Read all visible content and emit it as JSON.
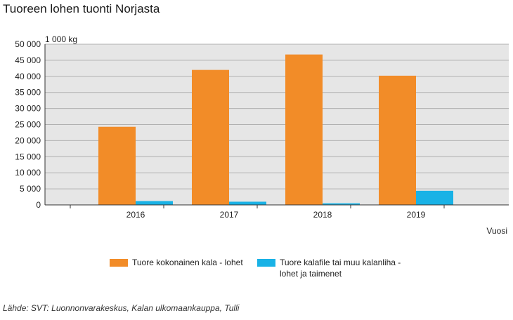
{
  "title": "Tuoreen lohen tuonti Norjasta",
  "source": "Lähde: SVT: Luonnonvarakeskus, Kalan ulkomaankauppa, Tulli",
  "chart_data": {
    "type": "bar",
    "categories": [
      "2016",
      "2017",
      "2018",
      "2019"
    ],
    "series": [
      {
        "name": "Tuore kokonainen kala - lohet",
        "values": [
          24300,
          42000,
          46800,
          40200
        ],
        "color": "#f28c28"
      },
      {
        "name": "Tuore kalafile tai muu kalanliha - lohet ja taimenet",
        "values": [
          1200,
          1000,
          500,
          4400
        ],
        "color": "#19b2e6"
      }
    ],
    "unit_label": "1 000 kg",
    "xlabel": "Vuosi",
    "ylim": [
      0,
      50000
    ],
    "yticks": [
      0,
      5000,
      10000,
      15000,
      20000,
      25000,
      30000,
      35000,
      40000,
      45000,
      50000
    ],
    "ytick_labels": [
      "0",
      "5 000",
      "10 000",
      "15 000",
      "20 000",
      "25 000",
      "30 000",
      "35 000",
      "40 000",
      "45 000",
      "50 000"
    ],
    "grid": true,
    "legend_position": "bottom",
    "plot_background": "#e6e6e6"
  }
}
